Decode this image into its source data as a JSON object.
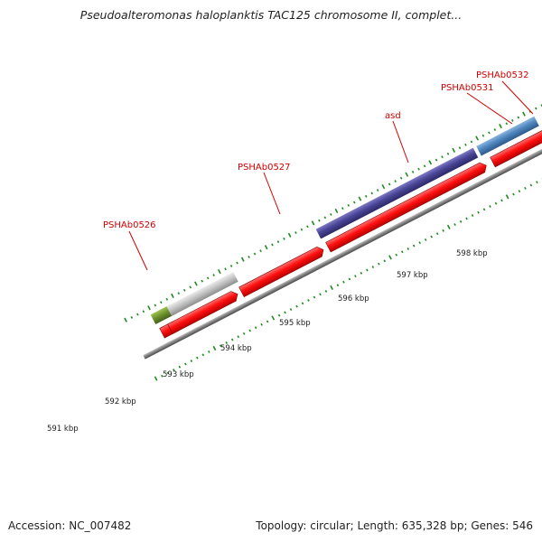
{
  "title": "Pseudoalteromonas haloplanktis TAC125 chromosome II, complet...",
  "footer": {
    "accession": "Accession: NC_007482",
    "summary": "Topology: circular; Length: 635,328 bp; Genes: 546"
  },
  "colors": {
    "backbone": "#7f7f7f",
    "ticks": "#1f8a1f",
    "label": "#d10000",
    "red_gene": "#ff1010",
    "purple_gene": "#4a4596",
    "steelblue_gene": "#4f86bd",
    "blue_gene": "#1414e6",
    "gray_gene": "#c0c0c0",
    "olive_gene": "#6c8f2a"
  },
  "scale_labels": [
    "591 kbp",
    "592 kbp",
    "593 kbp",
    "594 kbp",
    "595 kbp",
    "596 kbp",
    "597 kbp",
    "598 kbp"
  ],
  "gene_labels": [
    "PSHAb0526",
    "PSHAb0527",
    "asd",
    "PSHAb0531",
    "PSHAb0532"
  ]
}
